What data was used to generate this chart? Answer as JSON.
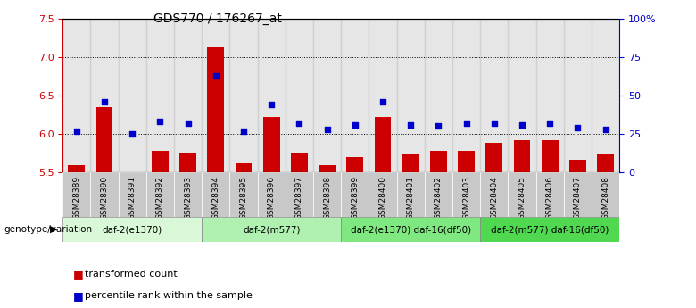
{
  "title": "GDS770 / 176267_at",
  "samples": [
    "GSM28389",
    "GSM28390",
    "GSM28391",
    "GSM28392",
    "GSM28393",
    "GSM28394",
    "GSM28395",
    "GSM28396",
    "GSM28397",
    "GSM28398",
    "GSM28399",
    "GSM28400",
    "GSM28401",
    "GSM28402",
    "GSM28403",
    "GSM28404",
    "GSM28405",
    "GSM28406",
    "GSM28407",
    "GSM28408"
  ],
  "transformed_count": [
    5.6,
    6.35,
    5.5,
    5.78,
    5.76,
    7.12,
    5.62,
    6.22,
    5.76,
    5.6,
    5.7,
    6.22,
    5.75,
    5.78,
    5.78,
    5.88,
    5.92,
    5.92,
    5.67,
    5.75
  ],
  "percentile_rank": [
    27,
    46,
    25,
    33,
    32,
    63,
    27,
    44,
    32,
    28,
    31,
    46,
    31,
    30,
    32,
    32,
    31,
    32,
    29,
    28
  ],
  "groups": [
    {
      "label": "daf-2(e1370)",
      "start": 0,
      "end": 5,
      "color": "#d8f8d8"
    },
    {
      "label": "daf-2(m577)",
      "start": 5,
      "end": 10,
      "color": "#b0f0b0"
    },
    {
      "label": "daf-2(e1370) daf-16(df50)",
      "start": 10,
      "end": 15,
      "color": "#80e880"
    },
    {
      "label": "daf-2(m577) daf-16(df50)",
      "start": 15,
      "end": 20,
      "color": "#50d850"
    }
  ],
  "ylim_left": [
    5.5,
    7.5
  ],
  "ylim_right": [
    0,
    100
  ],
  "yticks_left": [
    5.5,
    6.0,
    6.5,
    7.0,
    7.5
  ],
  "yticks_right": [
    0,
    25,
    50,
    75,
    100
  ],
  "ytick_labels_right": [
    "0",
    "25",
    "50",
    "75",
    "100%"
  ],
  "bar_color": "#cc0000",
  "scatter_color": "#0000cc",
  "bar_width": 0.6,
  "genotype_label": "genotype/variation",
  "gridlines_at": [
    6.0,
    6.5,
    7.0
  ],
  "sample_box_color": "#c8c8c8"
}
